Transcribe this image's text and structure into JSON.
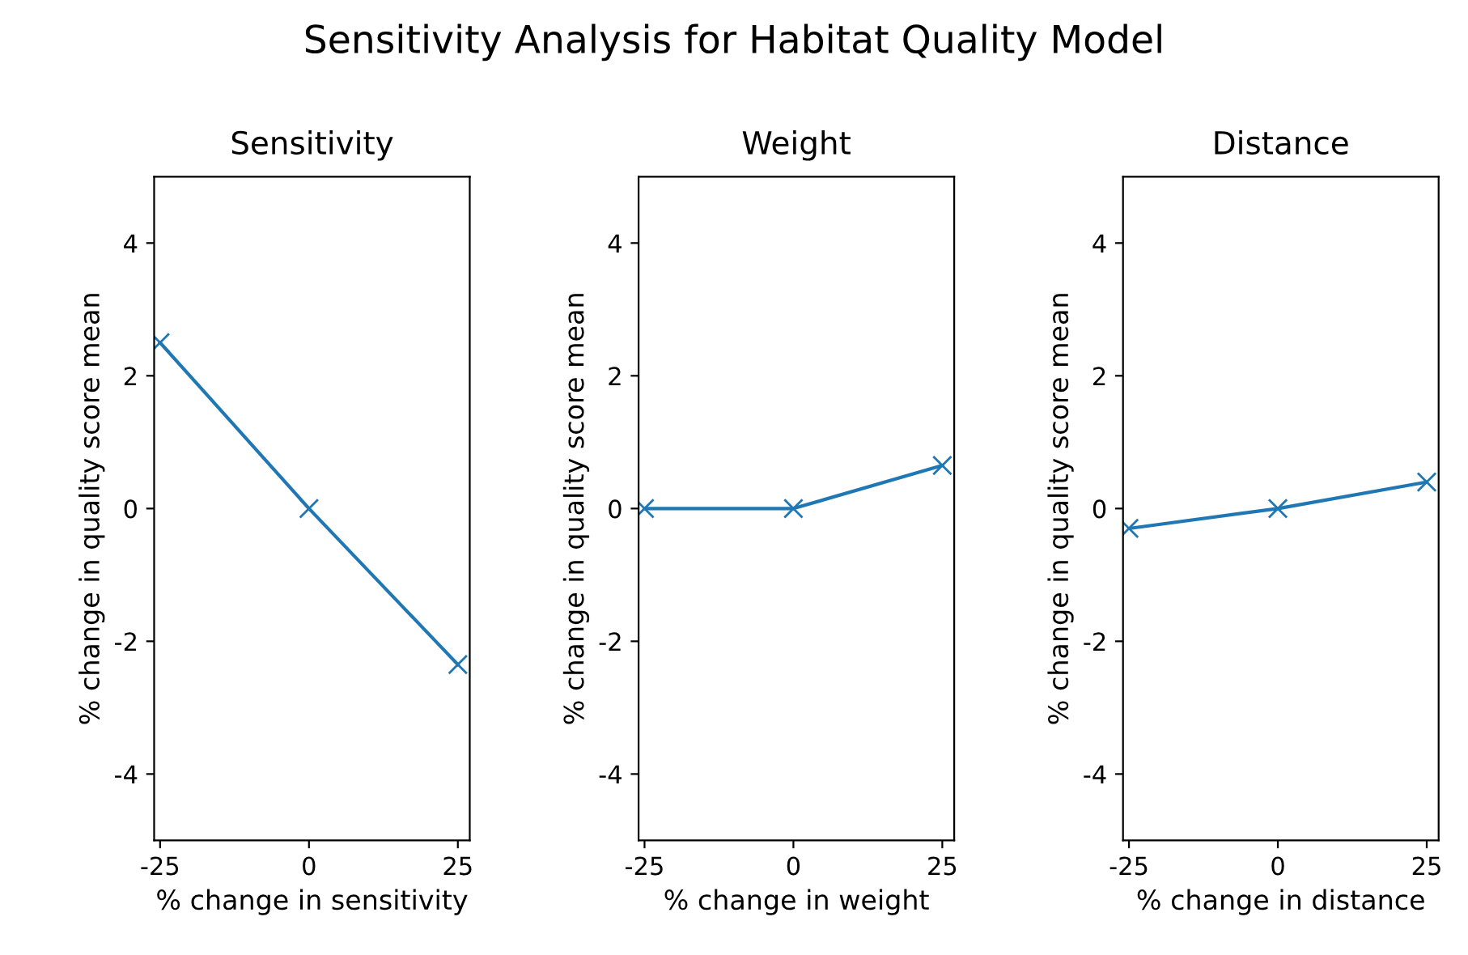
{
  "chart_data": [
    {
      "type": "line",
      "title": "Sensitivity",
      "xlabel": "% change in sensitivity",
      "ylabel": "% change in quality score mean",
      "x": [
        -25,
        0,
        25
      ],
      "series": [
        {
          "color": "#1f77b4",
          "values": [
            2.5,
            0,
            -2.35
          ]
        }
      ],
      "xlim": [
        -26,
        27
      ],
      "ylim": [
        -5,
        5
      ],
      "xticks": [
        -25,
        0,
        25
      ],
      "yticks": [
        -4,
        -2,
        0,
        2,
        4
      ],
      "marker": "cross",
      "line_style": "solid",
      "grid": false,
      "legend": false
    },
    {
      "type": "line",
      "title": "Weight",
      "xlabel": "% change in weight",
      "ylabel": "% change in quality score mean",
      "x": [
        -25,
        0,
        25
      ],
      "series": [
        {
          "color": "#1f77b4",
          "values": [
            0,
            0,
            0.65
          ]
        }
      ],
      "xlim": [
        -26,
        27
      ],
      "ylim": [
        -5,
        5
      ],
      "xticks": [
        -25,
        0,
        25
      ],
      "yticks": [
        -4,
        -2,
        0,
        2,
        4
      ],
      "marker": "cross",
      "line_style": "solid",
      "grid": false,
      "legend": false
    },
    {
      "type": "line",
      "title": "Distance",
      "xlabel": "% change in distance",
      "ylabel": "% change in quality score mean",
      "x": [
        -25,
        0,
        25
      ],
      "series": [
        {
          "color": "#1f77b4",
          "values": [
            -0.3,
            0,
            0.4
          ]
        }
      ],
      "xlim": [
        -26,
        27
      ],
      "ylim": [
        -5,
        5
      ],
      "xticks": [
        -25,
        0,
        25
      ],
      "yticks": [
        -4,
        -2,
        0,
        2,
        4
      ],
      "marker": "cross",
      "line_style": "solid",
      "grid": false,
      "legend": false
    },
    {
      "type": "other",
      "title": "Sensitivity Analysis for Habitat Quality Model"
    }
  ]
}
